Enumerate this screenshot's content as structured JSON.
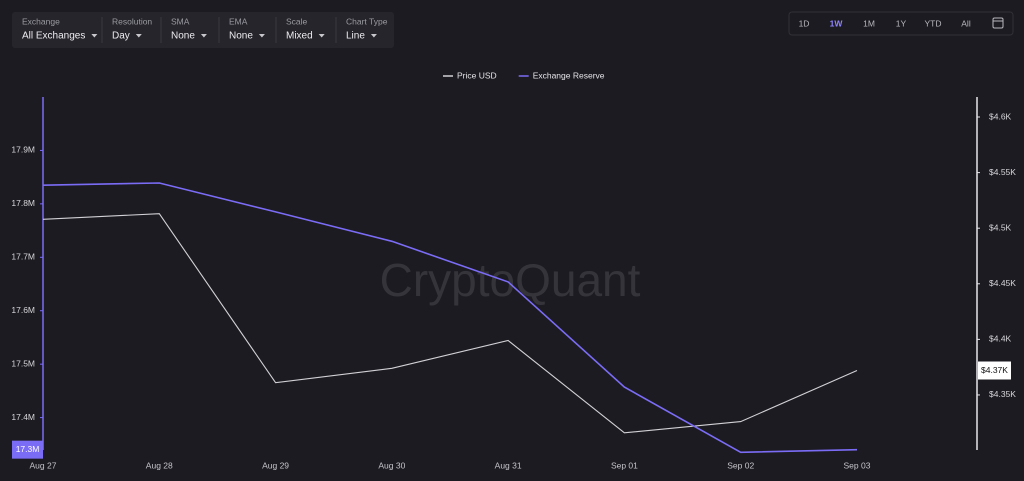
{
  "toolbar": {
    "filters": [
      {
        "label": "Exchange",
        "value": "All Exchanges"
      },
      {
        "label": "Resolution",
        "value": "Day"
      },
      {
        "label": "SMA",
        "value": "None"
      },
      {
        "label": "EMA",
        "value": "None"
      },
      {
        "label": "Scale",
        "value": "Mixed"
      },
      {
        "label": "Chart Type",
        "value": "Line"
      }
    ],
    "ranges": [
      "1D",
      "1W",
      "1M",
      "1Y",
      "YTD",
      "All"
    ],
    "active_range": "1W"
  },
  "chart_data": {
    "type": "line",
    "watermark": "CryptoQuant",
    "categories": [
      "Aug 27",
      "Aug 28",
      "Aug 29",
      "Aug 30",
      "Aug 31",
      "Sep 01",
      "Sep 02",
      "Sep 03"
    ],
    "series": [
      {
        "name": "Price USD",
        "color": "#d2d2d6",
        "axis": "y2",
        "values": [
          4508,
          4513,
          4361,
          4374,
          4399,
          4316,
          4326,
          4372
        ],
        "value_labels": [
          null,
          null,
          null,
          null,
          null,
          null,
          null,
          "$4.37K"
        ]
      },
      {
        "name": "Exchange Reserve",
        "color": "#7b6cf6",
        "axis": "y",
        "values": [
          17835000,
          17839000,
          17785000,
          17730000,
          17654000,
          17457000,
          17335000,
          17340000
        ],
        "value_labels": [
          null,
          null,
          null,
          null,
          null,
          null,
          null,
          "17.3M"
        ]
      }
    ],
    "ylim": [
      17330000,
      18000000
    ],
    "yticks": [
      {
        "value": 17400000,
        "label": "17.4M"
      },
      {
        "value": 17500000,
        "label": "17.5M"
      },
      {
        "value": 17600000,
        "label": "17.6M"
      },
      {
        "value": 17700000,
        "label": "17.7M"
      },
      {
        "value": 17800000,
        "label": "17.8M"
      },
      {
        "value": 17900000,
        "label": "17.9M"
      }
    ],
    "y2lim": [
      4296,
      4618
    ],
    "y2ticks": [
      {
        "value": 4350,
        "label": "$4.35K"
      },
      {
        "value": 4400,
        "label": "$4.4K"
      },
      {
        "value": 4450,
        "label": "$4.45K"
      },
      {
        "value": 4500,
        "label": "$4.5K"
      },
      {
        "value": 4550,
        "label": "$4.55K"
      },
      {
        "value": 4600,
        "label": "$4.6K"
      }
    ],
    "grid": false,
    "legend": "top"
  }
}
